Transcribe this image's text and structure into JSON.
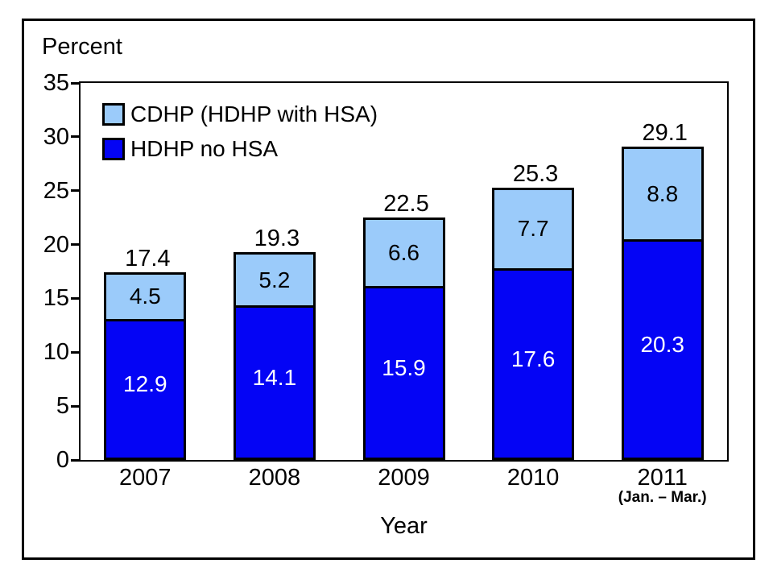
{
  "figure": {
    "background": "#ffffff",
    "frame_color": "#000000"
  },
  "chart_data": {
    "type": "bar",
    "stacked": true,
    "axis_unit_label": "Percent",
    "xlabel": "Year",
    "categories": [
      "2007",
      "2008",
      "2009",
      "2010",
      "2011"
    ],
    "category_notes": [
      "",
      "",
      "",
      "",
      "(Jan. – Mar.)"
    ],
    "series": [
      {
        "name": "HDHP no HSA",
        "color": "#0404f5",
        "label_color": "#ffffff",
        "values": [
          12.9,
          14.1,
          15.9,
          17.6,
          20.3
        ]
      },
      {
        "name": "CDHP (HDHP with HSA)",
        "color": "#9bcbfa",
        "label_color": "#000000",
        "values": [
          4.5,
          5.2,
          6.6,
          7.7,
          8.8
        ]
      }
    ],
    "totals": [
      17.4,
      19.3,
      22.5,
      25.3,
      29.1
    ],
    "ylim": [
      0,
      35
    ],
    "yticks": [
      0,
      5,
      10,
      15,
      20,
      25,
      30,
      35
    ],
    "grid": false,
    "legend_position": "top-left-inside",
    "legend_order": [
      "CDHP (HDHP with HSA)",
      "HDHP no HSA"
    ]
  }
}
